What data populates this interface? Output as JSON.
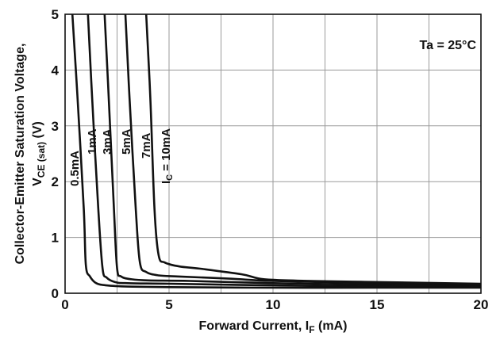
{
  "chart_data": {
    "type": "line",
    "xlabel_main": "Forward Current, I",
    "xlabel_sub": "F",
    "xlabel_unit": " (mA)",
    "ylabel_line1": "Collector-Emitter Saturation Voltage,",
    "ylabel_main": "V",
    "ylabel_sub": "CE (sat)",
    "ylabel_unit": " (V)",
    "annotation": "Ta = 25°C",
    "xlim": [
      0,
      20
    ],
    "ylim": [
      0,
      5
    ],
    "x_ticks": [
      "0",
      "5",
      "10",
      "15",
      "20"
    ],
    "y_ticks": [
      "0",
      "1",
      "2",
      "3",
      "4",
      "5"
    ],
    "grid": true,
    "series": [
      {
        "name": "0.5mA",
        "x": [
          0.35,
          0.6,
          0.9,
          1.0,
          1.2,
          1.5,
          2,
          3,
          5,
          10,
          15,
          20
        ],
        "y": [
          5.0,
          3.5,
          1.5,
          0.5,
          0.3,
          0.18,
          0.14,
          0.12,
          0.11,
          0.1,
          0.1,
          0.1
        ]
      },
      {
        "name": "1mA",
        "x": [
          1.1,
          1.3,
          1.6,
          1.8,
          2.0,
          2.4,
          3,
          5,
          10,
          15,
          20
        ],
        "y": [
          5.0,
          3.5,
          1.5,
          0.45,
          0.28,
          0.2,
          0.18,
          0.17,
          0.14,
          0.12,
          0.11
        ]
      },
      {
        "name": "3mA",
        "x": [
          1.9,
          2.1,
          2.35,
          2.5,
          2.7,
          3.2,
          4,
          6,
          10,
          15,
          20
        ],
        "y": [
          5.0,
          3.5,
          1.5,
          0.45,
          0.3,
          0.25,
          0.23,
          0.22,
          0.18,
          0.15,
          0.13
        ]
      },
      {
        "name": "5mA",
        "x": [
          2.9,
          3.1,
          3.4,
          3.6,
          3.9,
          4.5,
          5.5,
          8,
          10,
          15,
          20
        ],
        "y": [
          5.0,
          3.5,
          1.5,
          0.55,
          0.38,
          0.32,
          0.3,
          0.26,
          0.22,
          0.18,
          0.15
        ]
      },
      {
        "name": "7mA",
        "x": [
          3.9,
          4.1,
          4.3,
          4.5,
          4.8,
          5.5,
          6.5,
          8.5,
          10,
          15,
          20
        ],
        "y": [
          5.0,
          3.5,
          1.5,
          0.68,
          0.55,
          0.48,
          0.44,
          0.34,
          0.24,
          0.2,
          0.17
        ]
      }
    ],
    "curve_labels": [
      "0.5mA",
      "1mA",
      "3mA",
      "5mA",
      "7mA",
      "I",
      "C",
      " = 10mA"
    ]
  }
}
